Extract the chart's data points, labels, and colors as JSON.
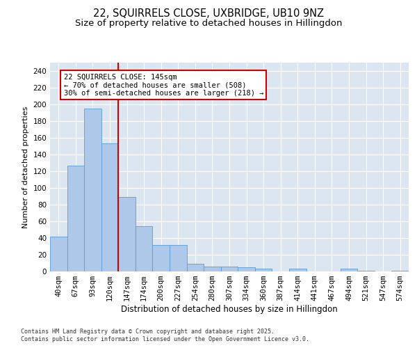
{
  "title": "22, SQUIRRELS CLOSE, UXBRIDGE, UB10 9NZ",
  "subtitle": "Size of property relative to detached houses in Hillingdon",
  "xlabel": "Distribution of detached houses by size in Hillingdon",
  "ylabel": "Number of detached properties",
  "categories": [
    "40sqm",
    "67sqm",
    "93sqm",
    "120sqm",
    "147sqm",
    "174sqm",
    "200sqm",
    "227sqm",
    "254sqm",
    "280sqm",
    "307sqm",
    "334sqm",
    "360sqm",
    "387sqm",
    "414sqm",
    "441sqm",
    "467sqm",
    "494sqm",
    "521sqm",
    "547sqm",
    "574sqm"
  ],
  "values": [
    42,
    127,
    195,
    153,
    89,
    54,
    32,
    32,
    9,
    6,
    6,
    5,
    3,
    0,
    3,
    0,
    0,
    3,
    1,
    0,
    1
  ],
  "bar_color": "#adc8e8",
  "bar_edgecolor": "#5b9bd5",
  "bar_linewidth": 0.6,
  "vline_x_idx": 3.5,
  "vline_color": "#cc0000",
  "vline_linewidth": 1.5,
  "annotation_text": "22 SQUIRRELS CLOSE: 145sqm\n← 70% of detached houses are smaller (508)\n30% of semi-detached houses are larger (218) →",
  "annotation_box_color": "#cc0000",
  "annotation_fontsize": 7.5,
  "ylim": [
    0,
    250
  ],
  "yticks": [
    0,
    20,
    40,
    60,
    80,
    100,
    120,
    140,
    160,
    180,
    200,
    220,
    240
  ],
  "bg_color": "#dce6f0",
  "grid_color": "#ffffff",
  "title_fontsize": 10.5,
  "subtitle_fontsize": 9.5,
  "xlabel_fontsize": 8.5,
  "ylabel_fontsize": 8,
  "tick_fontsize": 7.5,
  "footer_line1": "Contains HM Land Registry data © Crown copyright and database right 2025.",
  "footer_line2": "Contains public sector information licensed under the Open Government Licence v3.0.",
  "footer_fontsize": 6.0
}
